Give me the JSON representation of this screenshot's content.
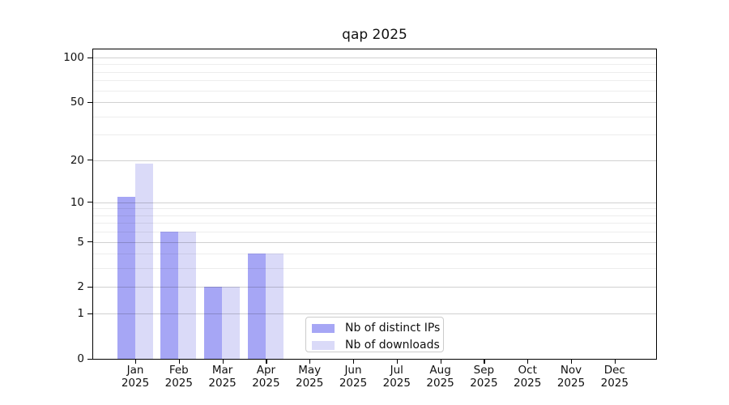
{
  "chart_data": {
    "type": "bar",
    "title": "qap 2025",
    "categories": [
      "Jan",
      "Feb",
      "Mar",
      "Apr",
      "May",
      "Jun",
      "Jul",
      "Aug",
      "Sep",
      "Oct",
      "Nov",
      "Dec"
    ],
    "year_label": "2025",
    "series": [
      {
        "name": "Nb of distinct IPs",
        "color": "#a6a6f5",
        "values": [
          11,
          6,
          2,
          4,
          0,
          0,
          0,
          0,
          0,
          0,
          0,
          0
        ]
      },
      {
        "name": "Nb of downloads",
        "color": "#dadaf8",
        "values": [
          19,
          6,
          2,
          4,
          0,
          0,
          0,
          0,
          0,
          0,
          0,
          0
        ]
      }
    ],
    "yscale": "log1p",
    "ylim": [
      0,
      115
    ],
    "yticks": [
      0,
      1,
      2,
      5,
      10,
      20,
      50,
      100
    ],
    "yticks_minor": [
      3,
      4,
      6,
      7,
      8,
      9,
      30,
      40,
      60,
      70,
      80,
      90
    ],
    "grid": true,
    "legend": {
      "position": "lower-center-inside"
    }
  }
}
